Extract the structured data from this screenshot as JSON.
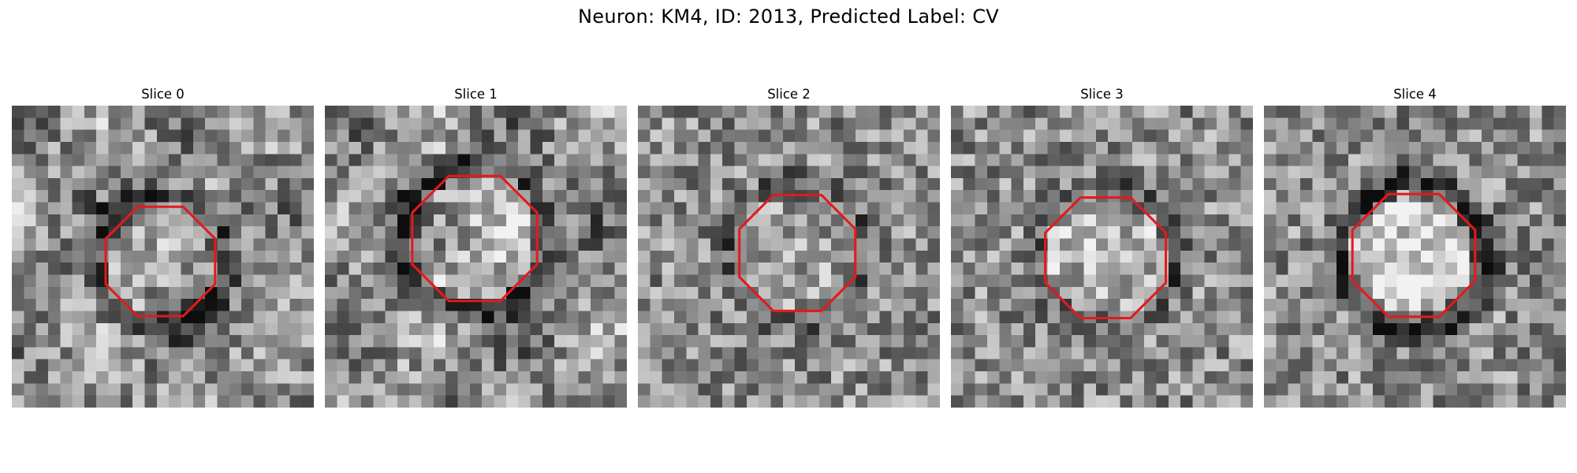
{
  "figure": {
    "title": "Neuron: KM4, ID: 2013, Predicted Label: CV",
    "contour_color": "#e31a1c"
  },
  "panels": [
    {
      "title": "Slice 0",
      "seed": 11,
      "cx": 12.3,
      "cy": 12.9,
      "r": 4.9,
      "ring_dark": 0.55,
      "inner": 0.1,
      "outer": 0.12
    },
    {
      "title": "Slice 1",
      "seed": 23,
      "cx": 12.4,
      "cy": 11.0,
      "r": 5.6,
      "ring_dark": 0.6,
      "inner": 0.22,
      "outer": 0.15
    },
    {
      "title": "Slice 2",
      "seed": 37,
      "cx": 13.2,
      "cy": 12.2,
      "r": 5.2,
      "ring_dark": 0.35,
      "inner": 0.12,
      "outer": 0.0
    },
    {
      "title": "Slice 3",
      "seed": 41,
      "cx": 12.8,
      "cy": 12.6,
      "r": 5.4,
      "ring_dark": 0.35,
      "inner": 0.25,
      "outer": 0.0
    },
    {
      "title": "Slice 4",
      "seed": 53,
      "cx": 12.4,
      "cy": 12.4,
      "r": 5.5,
      "ring_dark": 0.75,
      "inner": 0.45,
      "outer": 0.0
    }
  ]
}
